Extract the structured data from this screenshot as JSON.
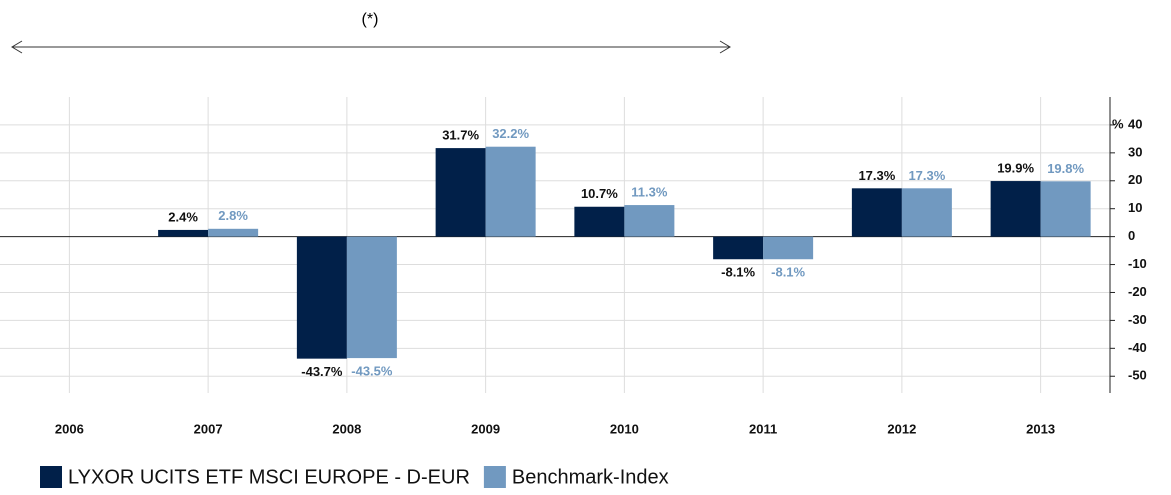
{
  "chart_data": {
    "type": "bar",
    "annotation": "(*)",
    "y_label": "%",
    "categories": [
      "2006",
      "2007",
      "2008",
      "2009",
      "2010",
      "2011",
      "2012",
      "2013"
    ],
    "series": [
      {
        "name": "LYXOR UCITS ETF MSCI EUROPE - D-EUR",
        "color": "#012049",
        "values": [
          null,
          2.4,
          -43.7,
          31.7,
          10.7,
          -8.1,
          17.3,
          19.9
        ],
        "value_labels": [
          null,
          "2.4%",
          "-43.7%",
          "31.7%",
          "10.7%",
          "-8.1%",
          "17.3%",
          "19.9%"
        ]
      },
      {
        "name": "Benchmark-Index",
        "color": "#7199c0",
        "values": [
          null,
          2.8,
          -43.5,
          32.2,
          11.3,
          -8.1,
          17.3,
          19.8
        ],
        "value_labels": [
          null,
          "2.8%",
          "-43.5%",
          "32.2%",
          "11.3%",
          "-8.1%",
          "17.3%",
          "19.8%"
        ]
      }
    ],
    "ylim": [
      -56,
      50
    ],
    "yticks": [
      -50,
      -40,
      -30,
      -20,
      -10,
      0,
      10,
      20,
      30,
      40
    ],
    "grid": true
  }
}
